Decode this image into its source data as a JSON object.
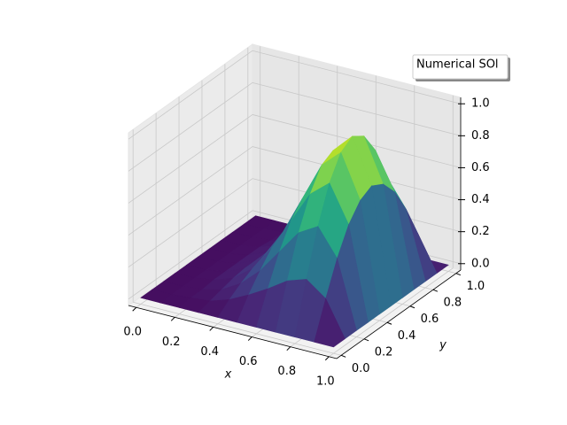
{
  "chart_data": {
    "type": "surface",
    "x_label": "x",
    "y_label": "y",
    "x": [
      0,
      0.1,
      0.2,
      0.3,
      0.4,
      0.5,
      0.6,
      0.7,
      0.8,
      0.9,
      1
    ],
    "y": [
      0,
      0.1,
      0.2,
      0.3,
      0.4,
      0.5,
      0.6,
      0.7,
      0.8,
      0.9,
      1
    ],
    "series": [
      {
        "name": "Numerical SOl",
        "colormap": "viridis",
        "z": [
          [
            0,
            0,
            0,
            0,
            0,
            0,
            0,
            0,
            0,
            0,
            0
          ],
          [
            0,
            0,
            0,
            0,
            0,
            0,
            0,
            0,
            0,
            0,
            0
          ],
          [
            0,
            0.01,
            0.01,
            0.02,
            0.02,
            0.02,
            0.02,
            0.02,
            0.01,
            0.01,
            0
          ],
          [
            0,
            0.02,
            0.04,
            0.06,
            0.07,
            0.07,
            0.07,
            0.06,
            0.04,
            0.02,
            0
          ],
          [
            0,
            0.06,
            0.11,
            0.15,
            0.18,
            0.19,
            0.18,
            0.15,
            0.11,
            0.06,
            0
          ],
          [
            0,
            0.12,
            0.22,
            0.31,
            0.36,
            0.38,
            0.36,
            0.31,
            0.22,
            0.12,
            0
          ],
          [
            0,
            0.19,
            0.37,
            0.51,
            0.6,
            0.63,
            0.6,
            0.51,
            0.37,
            0.19,
            0
          ],
          [
            0,
            0.27,
            0.52,
            0.71,
            0.84,
            0.88,
            0.84,
            0.71,
            0.52,
            0.27,
            0
          ],
          [
            0,
            0.31,
            0.59,
            0.81,
            0.95,
            1,
            0.95,
            0.81,
            0.59,
            0.31,
            0
          ],
          [
            0,
            0.22,
            0.42,
            0.58,
            0.68,
            0.72,
            0.68,
            0.58,
            0.42,
            0.22,
            0
          ],
          [
            0,
            0,
            0,
            0,
            0,
            0,
            0,
            0,
            0,
            0,
            0
          ]
        ]
      }
    ],
    "xlim": [
      -0.04,
      1.04
    ],
    "ylim": [
      -0.04,
      1.04
    ],
    "zlim": [
      -0.04,
      1.04
    ],
    "xticks": [
      {
        "value": 0,
        "label": "0.0"
      },
      {
        "value": 0.2,
        "label": "0.2"
      },
      {
        "value": 0.4,
        "label": "0.4"
      },
      {
        "value": 0.6,
        "label": "0.6"
      },
      {
        "value": 0.8,
        "label": "0.8"
      },
      {
        "value": 1,
        "label": "1.0"
      }
    ],
    "yticks": [
      {
        "value": 0,
        "label": "0.0"
      },
      {
        "value": 0.2,
        "label": "0.2"
      },
      {
        "value": 0.4,
        "label": "0.4"
      },
      {
        "value": 0.6,
        "label": "0.6"
      },
      {
        "value": 0.8,
        "label": "0.8"
      },
      {
        "value": 1,
        "label": "1.0"
      }
    ],
    "zticks": [
      {
        "value": 0,
        "label": "0.0"
      },
      {
        "value": 0.2,
        "label": "0.2"
      },
      {
        "value": 0.4,
        "label": "0.4"
      },
      {
        "value": 0.6,
        "label": "0.6"
      },
      {
        "value": 0.8,
        "label": "0.8"
      },
      {
        "value": 1,
        "label": "1.0"
      }
    ],
    "grid": true,
    "legend": "upper right"
  }
}
